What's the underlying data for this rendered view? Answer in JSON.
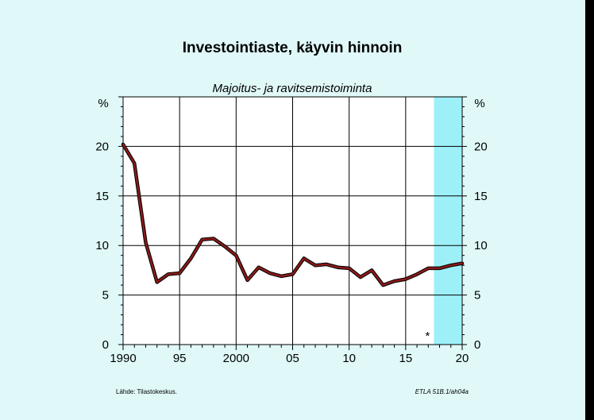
{
  "chart_data": {
    "type": "line",
    "title": "Investointiaste, käyvin hinnoin",
    "subtitle": "Majoitus- ja ravitsemistoiminta",
    "ylabel_left": "%",
    "ylabel_right": "%",
    "ylim": [
      0,
      25
    ],
    "xlim": [
      1990,
      2020
    ],
    "y_ticks": [
      0,
      5,
      10,
      15,
      20
    ],
    "x_ticks": [
      {
        "value": 1990,
        "label": "1990"
      },
      {
        "value": 1995,
        "label": "95"
      },
      {
        "value": 2000,
        "label": "2000"
      },
      {
        "value": 2005,
        "label": "05"
      },
      {
        "value": 2010,
        "label": "10"
      },
      {
        "value": 2015,
        "label": "15"
      },
      {
        "value": 2020,
        "label": "20"
      }
    ],
    "grid": true,
    "forecast_start": 2017.5,
    "forecast_color": "#9ef0f8",
    "forecast_marker": "*",
    "line_color": "#8b1a1a",
    "series": [
      {
        "x": [
          1990,
          1991,
          1992,
          1993,
          1994,
          1995,
          1996,
          1997,
          1998,
          1999,
          2000,
          2001,
          2002,
          2003,
          2004,
          2005,
          2006,
          2007,
          2008,
          2009,
          2010,
          2011,
          2012,
          2013,
          2014,
          2015,
          2016,
          2017,
          2018,
          2019,
          2020
        ],
        "values": [
          20.2,
          18.3,
          10.3,
          6.3,
          7.1,
          7.2,
          8.7,
          10.6,
          10.7,
          9.9,
          9.0,
          6.5,
          7.8,
          7.2,
          6.9,
          7.1,
          8.7,
          8.0,
          8.1,
          7.8,
          7.7,
          6.8,
          7.5,
          6.0,
          6.4,
          6.6,
          7.1,
          7.7,
          7.7,
          8.0,
          8.2
        ]
      }
    ]
  },
  "footer": {
    "source": "Lähde:   Tilastokeskus.",
    "code": "ETLA 51B.1/ah04a"
  }
}
